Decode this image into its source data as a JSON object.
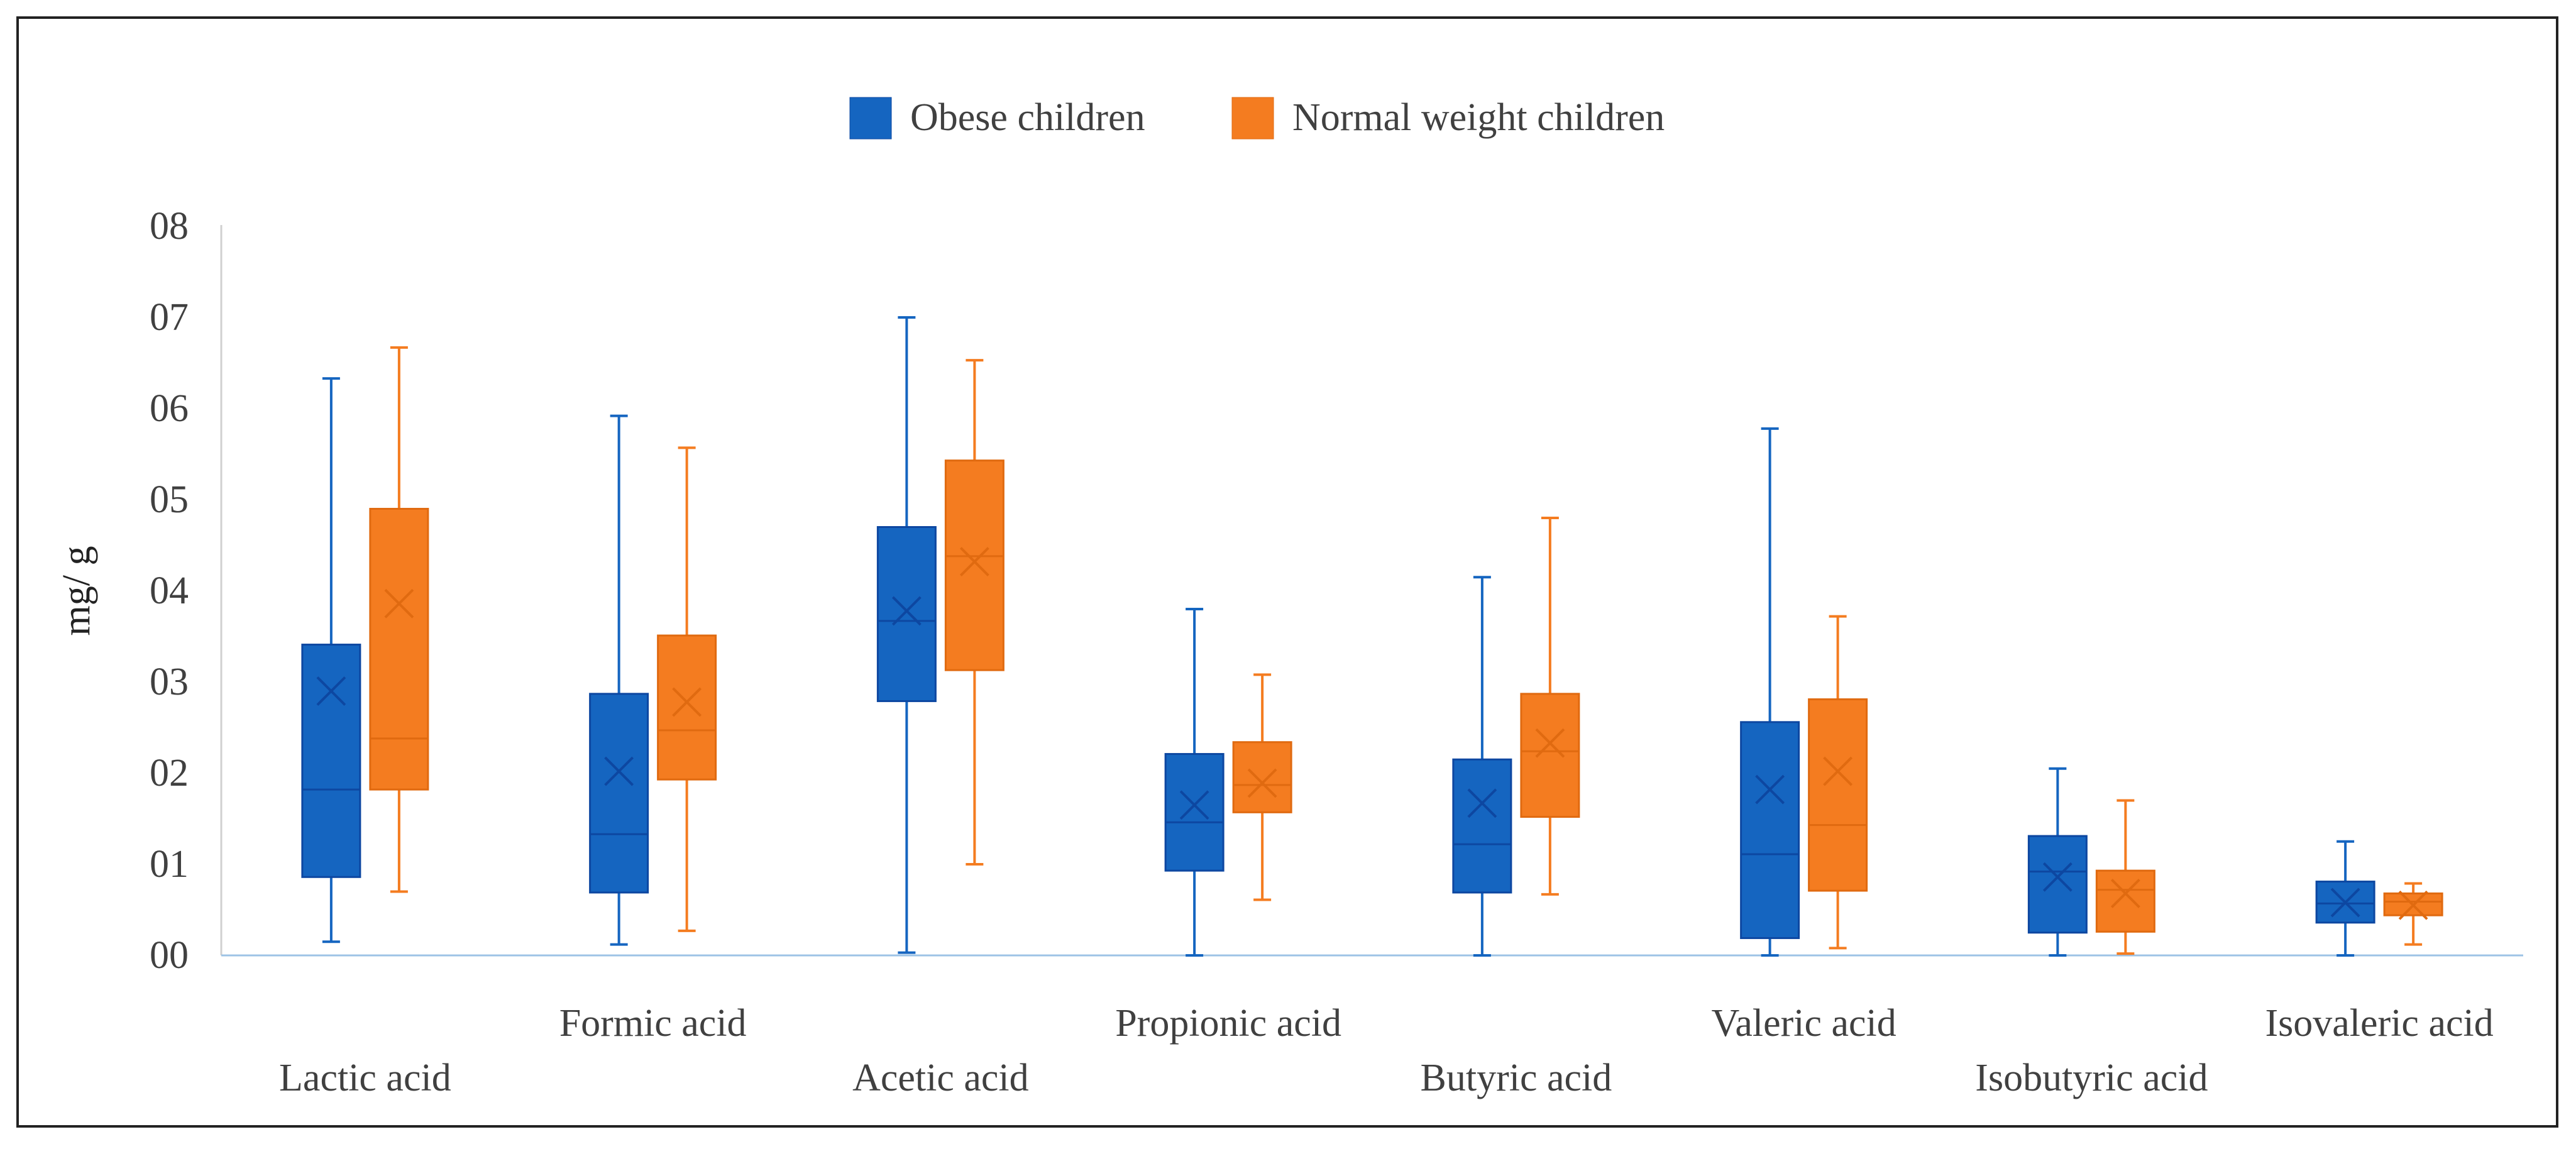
{
  "chart_data": {
    "type": "box",
    "title": "",
    "xlabel": "",
    "ylabel": "mg/ g",
    "ylim": [
      0,
      8
    ],
    "yticks": [
      {
        "value": 0,
        "label": "00"
      },
      {
        "value": 1,
        "label": "01"
      },
      {
        "value": 2,
        "label": "02"
      },
      {
        "value": 3,
        "label": "03"
      },
      {
        "value": 4,
        "label": "04"
      },
      {
        "value": 5,
        "label": "05"
      },
      {
        "value": 6,
        "label": "06"
      },
      {
        "value": 7,
        "label": "07"
      },
      {
        "value": 8,
        "label": "08"
      }
    ],
    "grid": false,
    "legend_position": "top-center",
    "categories": [
      "Lactic acid",
      "Formic acid",
      "Acetic acid",
      "Propionic acid",
      "Butyric acid",
      "Valeric acid",
      "Isobutyric acid",
      "Isovaleric acid"
    ],
    "series": [
      {
        "name": "Obese children",
        "color": "#1565C0",
        "boxes": [
          {
            "min": 0.15,
            "q1": 0.86,
            "median": 1.82,
            "q3": 3.41,
            "max": 6.33,
            "mean": 2.9
          },
          {
            "min": 0.12,
            "q1": 0.69,
            "median": 1.33,
            "q3": 2.87,
            "max": 5.92,
            "mean": 2.02
          },
          {
            "min": 0.03,
            "q1": 2.79,
            "median": 3.67,
            "q3": 4.7,
            "max": 7.0,
            "mean": 3.78
          },
          {
            "min": 0.0,
            "q1": 0.93,
            "median": 1.46,
            "q3": 2.21,
            "max": 3.8,
            "mean": 1.65
          },
          {
            "min": 0.0,
            "q1": 0.69,
            "median": 1.22,
            "q3": 2.15,
            "max": 4.15,
            "mean": 1.67
          },
          {
            "min": 0.0,
            "q1": 0.19,
            "median": 1.11,
            "q3": 2.56,
            "max": 5.78,
            "mean": 1.82
          },
          {
            "min": 0.0,
            "q1": 0.25,
            "median": 0.92,
            "q3": 1.31,
            "max": 2.05,
            "mean": 0.86
          },
          {
            "min": 0.0,
            "q1": 0.36,
            "median": 0.57,
            "q3": 0.81,
            "max": 1.25,
            "mean": 0.58
          }
        ]
      },
      {
        "name": "Normal weight children",
        "color": "#F47C20",
        "boxes": [
          {
            "min": 0.7,
            "q1": 1.82,
            "median": 2.38,
            "q3": 4.9,
            "max": 6.67,
            "mean": 3.86
          },
          {
            "min": 0.27,
            "q1": 1.93,
            "median": 2.47,
            "q3": 3.51,
            "max": 5.57,
            "mean": 2.78
          },
          {
            "min": 1.0,
            "q1": 3.13,
            "median": 4.38,
            "q3": 5.43,
            "max": 6.53,
            "mean": 4.32
          },
          {
            "min": 0.61,
            "q1": 1.57,
            "median": 1.87,
            "q3": 2.34,
            "max": 3.08,
            "mean": 1.89
          },
          {
            "min": 0.67,
            "q1": 1.52,
            "median": 2.24,
            "q3": 2.87,
            "max": 4.8,
            "mean": 2.33
          },
          {
            "min": 0.08,
            "q1": 0.71,
            "median": 1.43,
            "q3": 2.81,
            "max": 3.72,
            "mean": 2.02
          },
          {
            "min": 0.02,
            "q1": 0.26,
            "median": 0.72,
            "q3": 0.93,
            "max": 1.7,
            "mean": 0.68
          },
          {
            "min": 0.12,
            "q1": 0.44,
            "median": 0.59,
            "q3": 0.68,
            "max": 0.79,
            "mean": 0.55
          }
        ]
      }
    ]
  }
}
